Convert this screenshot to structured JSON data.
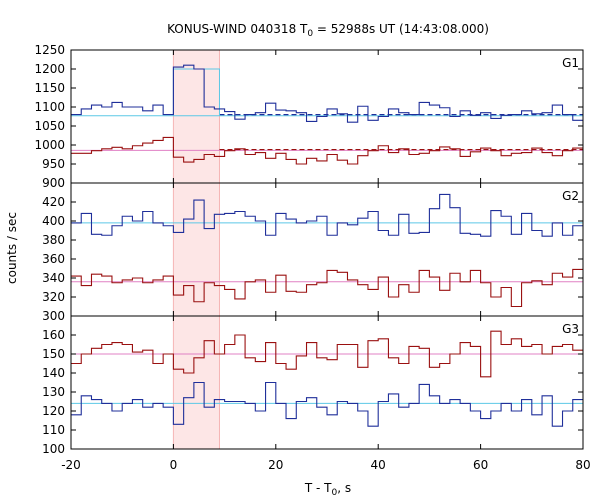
{
  "chart_data": {
    "type": "line",
    "title_prefix": "KONUS-WIND 040318 T",
    "title_sub": "0",
    "title_suffix": " = 52988s UT (14:43:08.000)",
    "xlabel_main": "T - T",
    "xlabel_sub": "0",
    "xlabel_suffix": ", s",
    "ylabel": "counts / sec",
    "xlim": [
      -20,
      80
    ],
    "x_ticks": [
      "-20",
      "0",
      "20",
      "40",
      "60",
      "80"
    ],
    "bin_edges": [
      -20,
      -18,
      -16,
      -14,
      -12,
      -10,
      -8,
      -6,
      -4,
      -2,
      0,
      2,
      4,
      6,
      8,
      10,
      12,
      14,
      16,
      18,
      20,
      22,
      24,
      26,
      28,
      30,
      32,
      34,
      36,
      38,
      40,
      42,
      44,
      46,
      48,
      50,
      52,
      54,
      56,
      58,
      60,
      62,
      64,
      66,
      68,
      70,
      72,
      74,
      76,
      78,
      80
    ],
    "highlight_interval": [
      0,
      9
    ],
    "colors": {
      "blue": "#1f2f9a",
      "red": "#9a1010",
      "bg_blue": "#5cc8e6",
      "bg_red": "#e080c4",
      "highlight": "#fde6e6",
      "highlight_edge": "#f5b5b5"
    },
    "panels": [
      {
        "label": "G1",
        "ylim": [
          900,
          1250
        ],
        "y_ticks": [
          900,
          950,
          1000,
          1050,
          1100,
          1150,
          1200,
          1250
        ],
        "series": [
          {
            "name": "G1 high-range counts",
            "color_key": "blue",
            "values": [
              1080,
              1095,
              1105,
              1100,
              1112,
              1100,
              1100,
              1090,
              1105,
              1080,
              1205,
              1210,
              1200,
              1100,
              1095,
              1088,
              1068,
              1080,
              1085,
              1110,
              1092,
              1090,
              1085,
              1062,
              1075,
              1095,
              1082,
              1060,
              1102,
              1065,
              1075,
              1095,
              1085,
              1080,
              1112,
              1105,
              1098,
              1075,
              1090,
              1078,
              1085,
              1070,
              1078,
              1080,
              1090,
              1082,
              1085,
              1105,
              1080,
              1065
            ]
          },
          {
            "name": "G1 low-range counts",
            "color_key": "red",
            "values": [
              978,
              978,
              985,
              990,
              994,
              990,
              998,
              1005,
              1012,
              1020,
              968,
              955,
              962,
              975,
              970,
              985,
              990,
              975,
              980,
              965,
              978,
              962,
              950,
              965,
              958,
              975,
              960,
              950,
              972,
              985,
              998,
              980,
              990,
              975,
              978,
              985,
              995,
              990,
              970,
              982,
              992,
              985,
              972,
              978,
              980,
              992,
              980,
              972,
              985,
              992
            ]
          }
        ],
        "fits": [
          {
            "color_key": "bg_blue",
            "level": 1077,
            "dashed_level": 1080
          },
          {
            "color_key": "bg_red",
            "level": 986,
            "dashed_level": 988
          }
        ],
        "boosted_step": {
          "color_key": "bg_blue",
          "level": 1200
        }
      },
      {
        "label": "G2",
        "ylim": [
          300,
          440
        ],
        "y_ticks": [
          300,
          320,
          340,
          360,
          380,
          400,
          420
        ],
        "series": [
          {
            "name": "G2 high-range counts",
            "color_key": "blue",
            "values": [
              398,
              408,
              386,
              385,
              395,
              405,
              400,
              410,
              398,
              395,
              388,
              402,
              422,
              392,
              407,
              408,
              410,
              405,
              400,
              385,
              408,
              402,
              398,
              400,
              405,
              385,
              398,
              396,
              403,
              410,
              390,
              385,
              407,
              387,
              388,
              413,
              428,
              414,
              387,
              386,
              384,
              411,
              405,
              386,
              408,
              390,
              384,
              398,
              385,
              395
            ]
          },
          {
            "name": "G2 low-range counts",
            "color_key": "red",
            "values": [
              342,
              332,
              344,
              342,
              335,
              338,
              340,
              335,
              338,
              342,
              322,
              332,
              315,
              335,
              332,
              328,
              318,
              336,
              338,
              325,
              343,
              326,
              325,
              333,
              335,
              348,
              346,
              338,
              333,
              328,
              341,
              320,
              333,
              325,
              348,
              341,
              327,
              345,
              336,
              348,
              335,
              320,
              330,
              310,
              335,
              337,
              333,
              345,
              341,
              349
            ]
          }
        ],
        "fits": [
          {
            "color_key": "bg_blue",
            "level": 398
          },
          {
            "color_key": "bg_red",
            "level": 336
          }
        ]
      },
      {
        "label": "G3",
        "ylim": [
          100,
          170
        ],
        "y_ticks": [
          100,
          110,
          120,
          130,
          140,
          150,
          160
        ],
        "series": [
          {
            "name": "G3 high-range counts",
            "color_key": "red",
            "values": [
              145,
              150,
              153,
              155,
              156,
              155,
              151,
              152,
              145,
              150,
              142,
              140,
              148,
              157,
              150,
              155,
              160,
              148,
              146,
              156,
              145,
              142,
              149,
              156,
              148,
              147,
              155,
              155,
              143,
              157,
              158,
              148,
              145,
              154,
              153,
              143,
              145,
              150,
              156,
              154,
              138,
              162,
              155,
              158,
              154,
              155,
              150,
              154,
              155,
              152
            ]
          },
          {
            "name": "G3 low-range counts",
            "color_key": "blue",
            "values": [
              118,
              128,
              126,
              124,
              120,
              124,
              126,
              122,
              124,
              122,
              113,
              127,
              135,
              122,
              126,
              125,
              125,
              124,
              120,
              135,
              124,
              116,
              125,
              127,
              122,
              118,
              125,
              124,
              120,
              112,
              125,
              129,
              122,
              124,
              134,
              128,
              124,
              126,
              124,
              120,
              116,
              120,
              124,
              120,
              126,
              118,
              128,
              112,
              120,
              126
            ]
          }
        ],
        "fits": [
          {
            "color_key": "bg_red",
            "level": 150
          },
          {
            "color_key": "bg_blue",
            "level": 124
          }
        ]
      }
    ]
  }
}
